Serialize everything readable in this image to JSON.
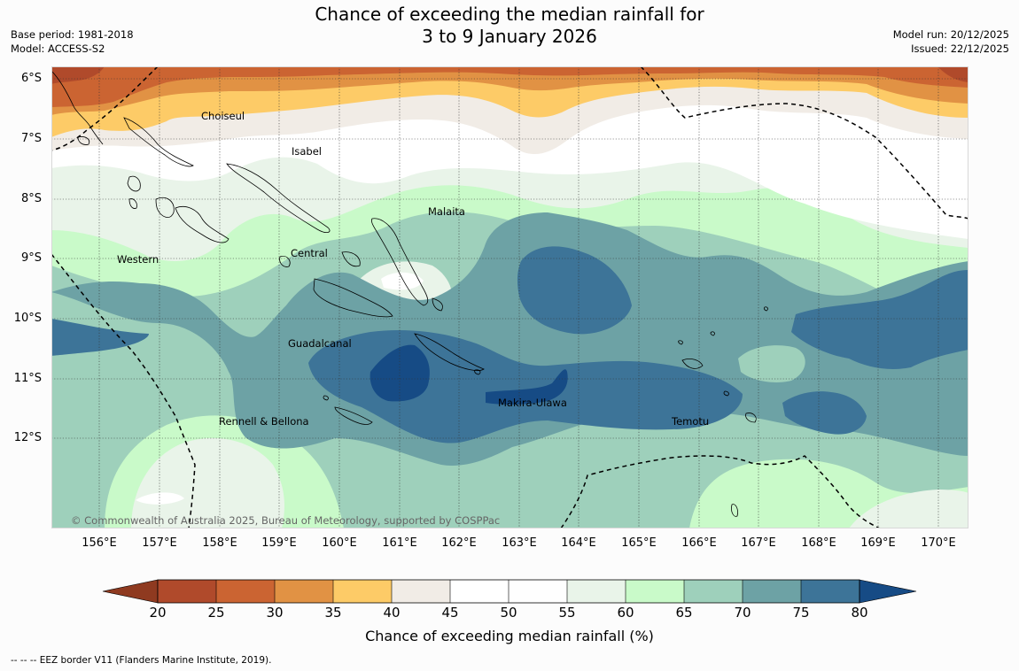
{
  "title": {
    "line1": "Chance of exceeding the median rainfall for",
    "line2": "3 to 9 January 2026"
  },
  "meta_left": {
    "base_period": "Base period: 1981-2018",
    "model": "Model: ACCESS-S2"
  },
  "meta_right": {
    "model_run": "Model run: 20/12/2025",
    "issued": "Issued: 22/12/2025"
  },
  "latitude_labels": [
    "6°S",
    "7°S",
    "8°S",
    "9°S",
    "10°S",
    "11°S",
    "12°S"
  ],
  "longitude_labels": [
    "156°E",
    "157°E",
    "158°E",
    "159°E",
    "160°E",
    "161°E",
    "162°E",
    "163°E",
    "164°E",
    "165°E",
    "166°E",
    "167°E",
    "168°E",
    "169°E",
    "170°E"
  ],
  "places": {
    "choiseul": "Choiseul",
    "isabel": "Isabel",
    "malaita": "Malaita",
    "western": "Western",
    "central": "Central",
    "guadalcanal": "Guadalcanal",
    "makira": "Makira-Ulawa",
    "rennell": "Rennell & Bellona",
    "temotu": "Temotu"
  },
  "copyright": "© Commonwealth of Australia 2025, Bureau of Meteorology, supported by COSPPac",
  "colorbar": {
    "label": "Chance of exceeding median rainfall (%)",
    "ticks": [
      "20",
      "25",
      "30",
      "35",
      "40",
      "45",
      "50",
      "55",
      "60",
      "65",
      "70",
      "75",
      "80"
    ],
    "colors": {
      "below20": "#8f3a20",
      "c20_25": "#b04a2b",
      "c25_30": "#cb6432",
      "c30_35": "#e19244",
      "c35_40": "#fdcb67",
      "c40_45": "#f1ece6",
      "c45_50": "#ffffff",
      "c50_55": "#fefefe",
      "c55_60": "#e9f4e9",
      "c60_65": "#c9fac9",
      "c65_70": "#9ed0bb",
      "c70_75": "#6da2a5",
      "c75_80": "#3d7498",
      "above80": "#164b85"
    }
  },
  "footer": "--  --  -- EEZ border V11 (Flanders Marine Institute, 2019)."
}
